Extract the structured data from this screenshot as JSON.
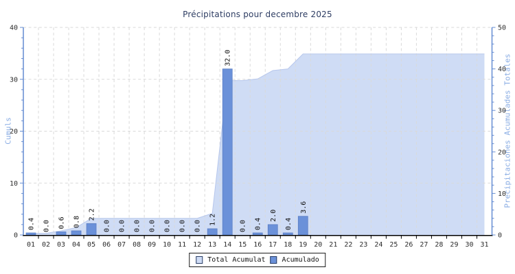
{
  "chart_data": {
    "type": "composite",
    "title": "Précipitations pour decembre 2025",
    "categories": [
      "01",
      "02",
      "03",
      "04",
      "05",
      "06",
      "07",
      "08",
      "09",
      "10",
      "11",
      "12",
      "13",
      "14",
      "15",
      "16",
      "17",
      "18",
      "19",
      "20",
      "21",
      "22",
      "23",
      "24",
      "25",
      "26",
      "27",
      "28",
      "29",
      "30",
      "31"
    ],
    "series": [
      {
        "name": "Total Acumulat",
        "type": "area",
        "axis": "right",
        "color": "#cfdcf5",
        "edge_color": "#b7c7ec",
        "values": [
          0.4,
          0.4,
          1.0,
          1.8,
          4.0,
          4.0,
          4.0,
          4.0,
          4.0,
          4.0,
          4.0,
          4.0,
          5.2,
          37.2,
          37.2,
          37.6,
          39.6,
          40.0,
          43.6,
          43.6,
          43.6,
          43.6,
          43.6,
          43.6,
          43.6,
          43.6,
          43.6,
          43.6,
          43.6,
          43.6,
          43.6
        ]
      },
      {
        "name": "Acumulado",
        "type": "bar",
        "axis": "left",
        "color": "#6b91d9",
        "edge_color": "#5a7dc2",
        "values": [
          0.4,
          0.0,
          0.6,
          0.8,
          2.2,
          0.0,
          0.0,
          0.0,
          0.0,
          0.0,
          0.0,
          0.0,
          1.2,
          32.0,
          0.0,
          0.4,
          2.0,
          0.4,
          3.6,
          null,
          null,
          null,
          null,
          null,
          null,
          null,
          null,
          null,
          null,
          null,
          null
        ],
        "value_labels": [
          "0.4",
          "0.0",
          "0.6",
          "0.8",
          "2.2",
          "0.0",
          "0.0",
          "0.0",
          "0.0",
          "0.0",
          "0.0",
          "0.0",
          "1.2",
          "32.0",
          "0.0",
          "0.4",
          "2.0",
          "0.4",
          "3.6",
          null,
          null,
          null,
          null,
          null,
          null,
          null,
          null,
          null,
          null,
          null,
          null
        ]
      }
    ],
    "left_axis": {
      "label": "Cumuls",
      "min": 0,
      "max": 40,
      "major_ticks": [
        0,
        10,
        20,
        30,
        40
      ],
      "minor_step": 2,
      "color": "#648cd2"
    },
    "right_axis": {
      "label": "Precipitaciones Acumulades Totales",
      "min": 0,
      "max": 50,
      "major_ticks": [
        0,
        10,
        20,
        30,
        40,
        50
      ],
      "minor_step": 2,
      "color": "#648cd2"
    },
    "x_axis": {
      "color": "#000000",
      "tick_label_color": "#2b2b2b"
    },
    "grid": {
      "show": true,
      "color": "#d9d9d9",
      "style": "dashed"
    },
    "legend": [
      {
        "label": "Total Acumulat",
        "color": "#cfdcf5"
      },
      {
        "label": "Acumulado",
        "color": "#6b91d9"
      }
    ],
    "legend_position": "bottom-center",
    "value_label_color": "#111111"
  }
}
